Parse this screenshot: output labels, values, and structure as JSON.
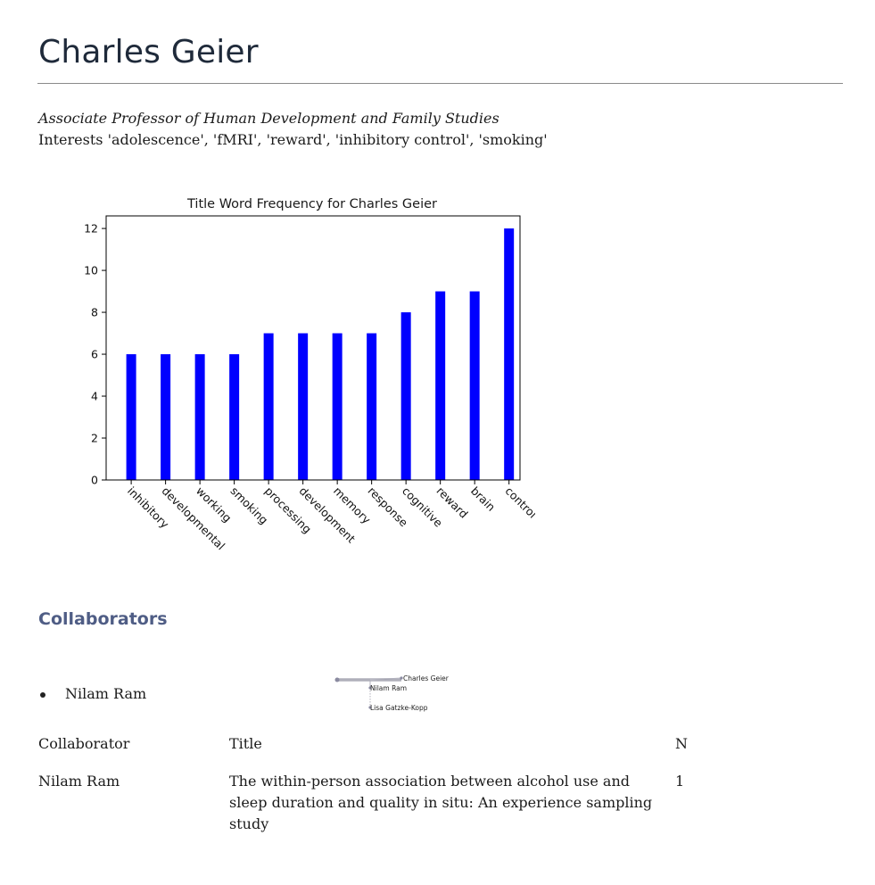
{
  "profile": {
    "name": "Charles Geier",
    "title": "Associate Professor of Human Development and Family Studies",
    "interests": "Interests 'adolescence', 'fMRI', 'reward', 'inhibitory control', 'smoking'"
  },
  "chart_data": {
    "type": "bar",
    "title": "Title Word Frequency for Charles Geier",
    "xlabel": "",
    "ylabel": "",
    "categories": [
      "inhibitory",
      "developmental",
      "working",
      "smoking",
      "processing",
      "development",
      "memory",
      "response",
      "cognitive",
      "reward",
      "brain",
      "control"
    ],
    "values": [
      6,
      6,
      6,
      6,
      7,
      7,
      7,
      7,
      8,
      9,
      9,
      12
    ],
    "ylim": [
      0,
      12.6
    ],
    "yticks": [
      0,
      2,
      4,
      6,
      8,
      10,
      12
    ],
    "bar_color": "#0000ff",
    "grid": false
  },
  "collaborators": {
    "heading": "Collaborators",
    "list": [
      "Nilam Ram"
    ],
    "network": {
      "nodes": [
        {
          "label": "Charles Geier"
        },
        {
          "label": "Nilam Ram"
        },
        {
          "label": "Lisa Gatzke-Kopp"
        }
      ]
    },
    "table": {
      "headers": [
        "Collaborator",
        "Title",
        "N"
      ],
      "rows": [
        {
          "collaborator": "Nilam Ram",
          "title": "The within-person association between alcohol use and sleep duration and quality in situ: An experience sampling study",
          "n": "1"
        }
      ]
    }
  }
}
